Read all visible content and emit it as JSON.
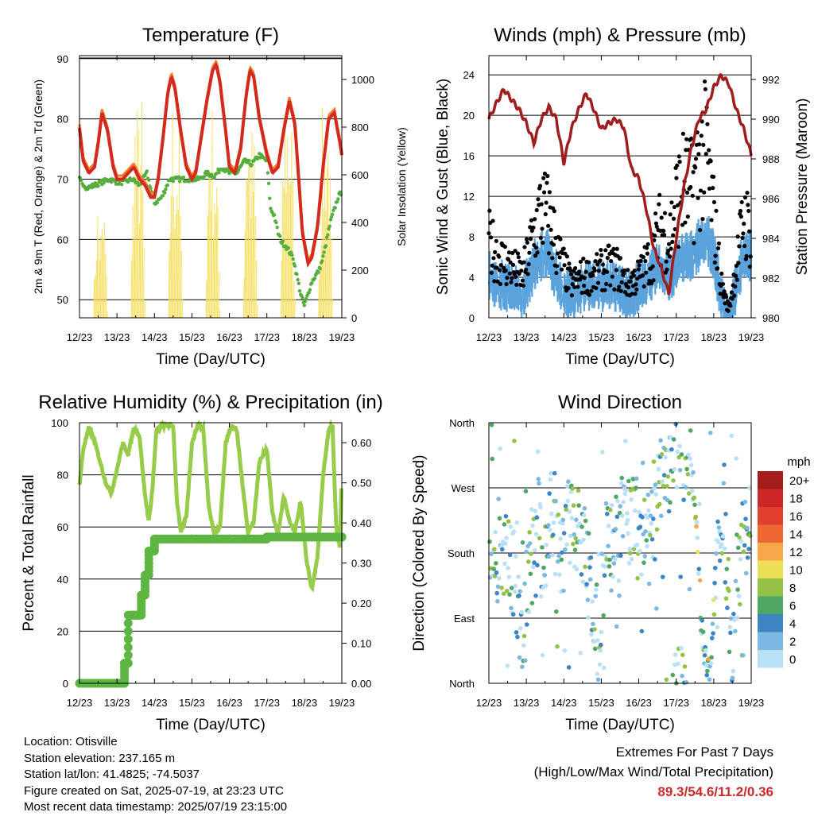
{
  "colors": {
    "temp_red": "#d42a1e",
    "temp_orange": "#f47a30",
    "dewpoint_green": "#56ae3f",
    "solar_yellow": "#f6de5c",
    "gust_black": "#000000",
    "wind_blue": "#5ba3dc",
    "pressure_maroon": "#a01d1d",
    "rh_lightgreen": "#96cc4a",
    "precip_green": "#5db542",
    "extremes_red": "#cc2a2a"
  },
  "chart_data": [
    {
      "type": "line",
      "title": "Temperature (F)",
      "xlabel": "Time (Day/UTC)",
      "ylabel": "2m & 9m T (Red, Orange) & 2m Td (Green)",
      "ylabel_right": "Solar Insolation (Yellow)",
      "x_ticks": [
        "12/23",
        "13/23",
        "14/23",
        "15/23",
        "16/23",
        "17/23",
        "18/23",
        "19/23"
      ],
      "ylim": [
        47,
        90.5
      ],
      "y_ticks": [
        50,
        60,
        70,
        80,
        90
      ],
      "ylim_right": [
        0,
        1100
      ],
      "y_ticks_right": [
        0,
        200,
        400,
        600,
        800,
        1000
      ],
      "grid": "horizontal",
      "series": [
        {
          "values_axis": "left",
          "x": [
            0,
            0.1,
            0.25,
            0.4,
            0.5,
            0.6,
            0.75,
            0.9,
            1.0,
            1.15,
            1.3,
            1.45,
            1.6,
            1.75,
            1.9,
            2.0,
            2.1,
            2.25,
            2.35,
            2.45,
            2.55,
            2.7,
            2.85,
            3.0,
            3.1,
            3.25,
            3.4,
            3.55,
            3.65,
            3.75,
            3.9,
            4.0,
            4.15,
            4.3,
            4.45,
            4.55,
            4.65,
            4.8,
            5.0,
            5.15,
            5.3,
            5.45,
            5.6,
            5.75,
            5.85,
            5.95,
            6.1,
            6.2,
            6.35,
            6.5,
            6.65,
            6.8,
            6.95,
            7.0
          ],
          "values": [
            78.5,
            73,
            71,
            72,
            76,
            81,
            78,
            72,
            70,
            70,
            71,
            72,
            70,
            69,
            67,
            67,
            70,
            78,
            84,
            87,
            85,
            78,
            72,
            70,
            71,
            77,
            83,
            88,
            89,
            86,
            78,
            72,
            71,
            75,
            84,
            88,
            87,
            80,
            74,
            71,
            72,
            78,
            83,
            79,
            70,
            61,
            56,
            57,
            62,
            72,
            80,
            81,
            76,
            74
          ]
        },
        {
          "values_axis": "left",
          "x": [
            0,
            0.2,
            0.4,
            0.6,
            0.8,
            1.0,
            1.2,
            1.4,
            1.6,
            1.8,
            2.0,
            2.2,
            2.4,
            2.6,
            2.8,
            3.0,
            3.2,
            3.4,
            3.6,
            3.8,
            4.0,
            4.2,
            4.4,
            4.6,
            4.8,
            5.0,
            5.1,
            5.2,
            5.3,
            5.4,
            5.5,
            5.6,
            5.7,
            5.8,
            5.9,
            6.0,
            6.1,
            6.2,
            6.3,
            6.4,
            6.5,
            6.6,
            6.7,
            6.8,
            6.9,
            7.0
          ],
          "values": [
            70,
            68.5,
            69,
            69.5,
            70,
            69.5,
            69.5,
            70,
            69,
            71,
            66,
            67,
            70,
            70,
            70,
            70,
            70,
            71,
            70.5,
            72,
            71,
            71,
            73,
            72.5,
            74,
            73,
            65,
            64,
            61,
            59.5,
            59,
            58,
            57,
            54,
            51,
            49,
            51,
            53,
            54,
            55,
            57,
            60,
            63,
            65,
            67,
            68
          ]
        },
        {
          "values_axis": "right",
          "x": [
            0.35,
            0.45,
            0.55,
            0.65,
            0.75,
            1.35,
            1.45,
            1.55,
            1.65,
            1.75,
            2.35,
            2.45,
            2.55,
            2.65,
            2.75,
            3.35,
            3.45,
            3.55,
            3.65,
            3.75,
            4.35,
            4.45,
            4.55,
            4.65,
            4.75,
            5.35,
            5.45,
            5.55,
            5.65,
            5.75,
            6.35,
            6.45,
            6.55,
            6.65,
            6.75
          ],
          "values": [
            0,
            550,
            400,
            500,
            0,
            0,
            980,
            900,
            950,
            0,
            0,
            1000,
            800,
            850,
            0,
            0,
            1000,
            900,
            700,
            0,
            0,
            1050,
            850,
            800,
            0,
            0,
            1000,
            1040,
            900,
            0,
            0,
            850,
            1020,
            900,
            0
          ]
        }
      ]
    },
    {
      "type": "line",
      "title": "Winds (mph) & Pressure (mb)",
      "xlabel": "Time (Day/UTC)",
      "ylabel": "Sonic Wind & Gust (Blue, Black)",
      "ylabel_right": "Station Pressure (Maroon)",
      "x_ticks": [
        "12/23",
        "13/23",
        "14/23",
        "15/23",
        "16/23",
        "17/23",
        "18/23",
        "19/23"
      ],
      "ylim": [
        0,
        25.9
      ],
      "y_ticks": [
        0,
        4,
        8,
        12,
        16,
        20,
        24
      ],
      "ylim_right": [
        980,
        993.2
      ],
      "y_ticks_right": [
        980,
        982,
        984,
        986,
        988,
        990,
        992
      ],
      "grid": "horizontal",
      "series": [
        {
          "name_hint": "gust",
          "values_axis": "left",
          "x": [
            0,
            0.3,
            0.6,
            0.9,
            1.2,
            1.4,
            1.6,
            1.9,
            2.2,
            2.5,
            2.8,
            3.1,
            3.4,
            3.7,
            4.0,
            4.3,
            4.6,
            4.8,
            5.0,
            5.2,
            5.4,
            5.6,
            5.8,
            6.0,
            6.2,
            6.4,
            6.6,
            6.8,
            7.0
          ],
          "values": [
            9,
            7,
            6,
            5,
            10,
            13,
            12,
            7,
            4,
            5,
            5,
            6,
            6,
            4,
            5,
            7,
            11,
            9,
            14,
            16,
            15,
            18,
            20,
            12,
            4,
            1,
            6,
            12,
            10
          ]
        },
        {
          "name_hint": "wind",
          "values_axis": "left",
          "x": [
            0,
            0.3,
            0.6,
            0.9,
            1.2,
            1.4,
            1.6,
            1.9,
            2.2,
            2.5,
            2.8,
            3.1,
            3.4,
            3.7,
            4.0,
            4.3,
            4.6,
            4.8,
            5.0,
            5.2,
            5.4,
            5.6,
            5.8,
            6.0,
            6.2,
            6.4,
            6.6,
            6.8,
            7.0
          ],
          "values": [
            4,
            3,
            3,
            2,
            5,
            6,
            6,
            3,
            2,
            3,
            3,
            3,
            3,
            2,
            3,
            4,
            5,
            4,
            5,
            6,
            6,
            7,
            8,
            6,
            2,
            0,
            3,
            6,
            6
          ]
        },
        {
          "name_hint": "pressure",
          "values_axis": "right",
          "x": [
            0,
            0.2,
            0.4,
            0.6,
            0.8,
            1.0,
            1.2,
            1.4,
            1.6,
            1.8,
            2.0,
            2.2,
            2.4,
            2.6,
            2.8,
            3.0,
            3.2,
            3.4,
            3.6,
            3.8,
            4.0,
            4.2,
            4.4,
            4.6,
            4.8,
            5.0,
            5.2,
            5.4,
            5.6,
            5.8,
            6.0,
            6.2,
            6.4,
            6.6,
            6.8,
            7.0
          ],
          "values": [
            990,
            990.8,
            991.5,
            991,
            990.5,
            989.8,
            988.8,
            990,
            990.6,
            990,
            987.8,
            989.5,
            990.5,
            991.3,
            990.5,
            989.5,
            989.8,
            990,
            989.6,
            987.5,
            987,
            985.5,
            983.5,
            982.5,
            981.2,
            984,
            986.5,
            988.5,
            990,
            990.5,
            991.6,
            992.2,
            991.8,
            990.5,
            989.5,
            988.2
          ]
        }
      ]
    },
    {
      "type": "line",
      "title": "Relative Humidity (%) & Precipitation (in)",
      "xlabel": "Time (Day/UTC)",
      "ylabel": "Percent & Total Rainfall",
      "x_ticks": [
        "12/23",
        "13/23",
        "14/23",
        "15/23",
        "16/23",
        "17/23",
        "18/23",
        "19/23"
      ],
      "ylim": [
        0,
        100
      ],
      "y_ticks": [
        0,
        20,
        40,
        60,
        80,
        100
      ],
      "ylim_right": [
        0,
        0.65
      ],
      "y_ticks_right": [
        "0.00",
        "0.10",
        "0.20",
        "0.30",
        "0.40",
        "0.50",
        "0.60"
      ],
      "grid": "horizontal",
      "series": [
        {
          "name_hint": "rh",
          "values_axis": "left",
          "x": [
            0,
            0.1,
            0.25,
            0.4,
            0.55,
            0.7,
            0.85,
            1.0,
            1.15,
            1.3,
            1.45,
            1.6,
            1.75,
            1.85,
            1.95,
            2.05,
            2.2,
            2.35,
            2.5,
            2.6,
            2.7,
            2.85,
            3.0,
            3.15,
            3.3,
            3.45,
            3.6,
            3.75,
            3.9,
            4.05,
            4.2,
            4.35,
            4.5,
            4.65,
            4.8,
            5.0,
            5.15,
            5.3,
            5.45,
            5.6,
            5.75,
            5.9,
            6.05,
            6.2,
            6.35,
            6.5,
            6.65,
            6.75,
            6.85,
            6.95,
            7.0
          ],
          "values": [
            76,
            90,
            98,
            93,
            85,
            77,
            73,
            82,
            92,
            88,
            98,
            95,
            72,
            62,
            75,
            97,
            99,
            99,
            99,
            70,
            58,
            64,
            92,
            99,
            98,
            68,
            57,
            60,
            92,
            99,
            97,
            76,
            58,
            62,
            85,
            90,
            65,
            57,
            72,
            62,
            58,
            70,
            48,
            36,
            48,
            80,
            97,
            99,
            60,
            52,
            80
          ]
        },
        {
          "name_hint": "precip",
          "values_axis": "right",
          "x": [
            0,
            1.1,
            1.2,
            1.3,
            1.45,
            1.55,
            1.65,
            1.75,
            1.85,
            2.0,
            3.0,
            4.0,
            5.0,
            6.0,
            7.0
          ],
          "values": [
            0,
            0,
            0.05,
            0.17,
            0.17,
            0.17,
            0.22,
            0.27,
            0.33,
            0.36,
            0.36,
            0.36,
            0.365,
            0.365,
            0.365
          ]
        }
      ]
    },
    {
      "type": "scatter",
      "title": "Wind Direction",
      "xlabel": "Time (Day/UTC)",
      "ylabel": "Direction (Colored By Speed)",
      "x_ticks": [
        "12/23",
        "13/23",
        "14/23",
        "15/23",
        "16/23",
        "17/23",
        "18/23",
        "19/23"
      ],
      "y_ticks": [
        "North",
        "East",
        "South",
        "West",
        "North"
      ],
      "ylim": [
        0,
        360
      ],
      "grid": "horizontal",
      "legend_title": "mph",
      "legend_labels": [
        "20+",
        "18",
        "16",
        "14",
        "12",
        "10",
        "8",
        "6",
        "4",
        "2",
        "0"
      ],
      "legend_colors": [
        "#a51c1c",
        "#cd2627",
        "#e2402e",
        "#f06831",
        "#f7a74a",
        "#eadf55",
        "#93c247",
        "#4ea864",
        "#3d84c3",
        "#7bb8e2",
        "#b9e0f6"
      ],
      "legend_placement": "right",
      "x": [
        0.1,
        0.3,
        0.5,
        0.7,
        0.9,
        1.1,
        1.3,
        1.5,
        1.7,
        1.9,
        2.1,
        2.3,
        2.5,
        2.7,
        2.9,
        3.1,
        3.3,
        3.5,
        3.7,
        3.9,
        4.1,
        4.3,
        4.5,
        4.7,
        4.9,
        5.1,
        5.3,
        5.5,
        5.7,
        5.9,
        6.1,
        6.3,
        6.5,
        6.7,
        6.9
      ],
      "values": [
        170,
        190,
        180,
        150,
        60,
        170,
        190,
        170,
        240,
        180,
        210,
        230,
        200,
        120,
        60,
        180,
        200,
        210,
        240,
        220,
        200,
        200,
        250,
        290,
        320,
        350,
        330,
        250,
        60,
        10,
        200,
        180,
        30,
        180,
        200
      ]
    }
  ],
  "station": {
    "location": "Location: Otisville",
    "elevation": "Station elevation: 237.165 m",
    "latlon": "Station lat/lon: 41.4825; -74.5037",
    "created": "Figure created on Sat, 2025-07-19, at 23:23 UTC",
    "recent": "Most recent data timestamp: 2025/07/19 23:15:00"
  },
  "extremes": {
    "line1": "Extremes For Past 7 Days",
    "line2": "(High/Low/Max Wind/Total Precipitation)",
    "values": "89.3/54.6/11.2/0.36"
  }
}
